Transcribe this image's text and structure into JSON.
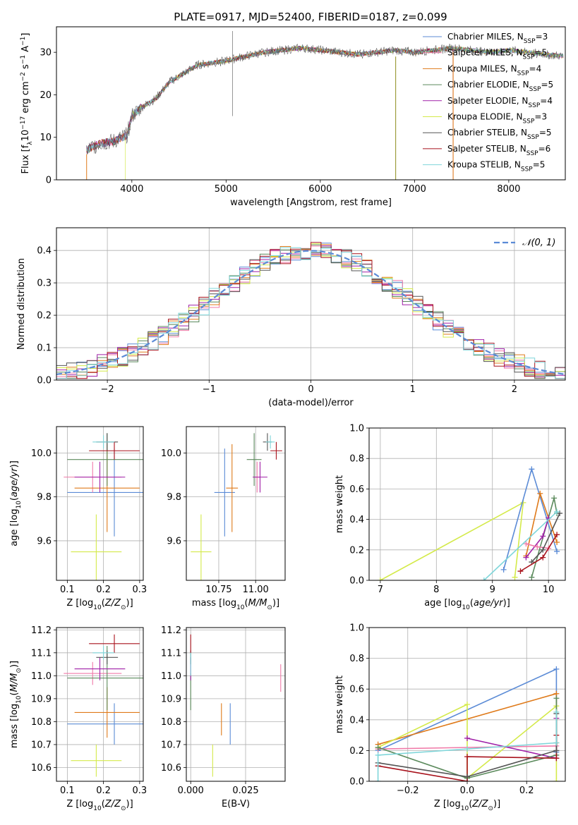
{
  "title": "PLATE=0917, MJD=52400, FIBERID=0187, z=0.099",
  "colors": {
    "Chabrier MILES": "#5b8bd6",
    "Salpeter MILES": "#f07aa8",
    "Kroupa MILES": "#df7a1a",
    "Chabrier ELODIE": "#5b8a5c",
    "Salpeter ELODIE": "#a020a8",
    "Kroupa ELODIE": "#d4ea4a",
    "Chabrier STELIB": "#555555",
    "Salpeter STELIB": "#a8121c",
    "Kroupa STELIB": "#7fd6da"
  },
  "chart_data": [
    {
      "id": "spectrum",
      "type": "line",
      "xlabel": "wavelength [Angstrom, rest frame]",
      "ylabel": "Flux [f_λ 10^-17 erg cm^-2 s^-1 A^-1]",
      "xlim": [
        3200,
        8600
      ],
      "ylim": [
        0,
        36
      ],
      "xticks": [
        "4000",
        "5000",
        "6000",
        "7000",
        "8000"
      ],
      "yticks": [
        "0",
        "10",
        "20",
        "30"
      ],
      "legend_position": "top-right",
      "legend": [
        {
          "model": "Chabrier MILES",
          "nssp": "3"
        },
        {
          "model": "Salpeter MILES",
          "nssp": "5"
        },
        {
          "model": "Kroupa MILES",
          "nssp": "4"
        },
        {
          "model": "Chabrier ELODIE",
          "nssp": "5"
        },
        {
          "model": "Salpeter ELODIE",
          "nssp": "4"
        },
        {
          "model": "Kroupa ELODIE",
          "nssp": "3"
        },
        {
          "model": "Chabrier STELIB",
          "nssp": "5"
        },
        {
          "model": "Salpeter STELIB",
          "nssp": "6"
        },
        {
          "model": "Kroupa STELIB",
          "nssp": "5"
        }
      ],
      "continuum": [
        [
          3520,
          7
        ],
        [
          3650,
          8.5
        ],
        [
          3800,
          9
        ],
        [
          3950,
          10.5
        ],
        [
          4000,
          15
        ],
        [
          4100,
          17
        ],
        [
          4250,
          19
        ],
        [
          4400,
          23
        ],
        [
          4550,
          25
        ],
        [
          4700,
          27
        ],
        [
          4850,
          27.5
        ],
        [
          5000,
          28
        ],
        [
          5200,
          29
        ],
        [
          5400,
          30
        ],
        [
          5600,
          30.5
        ],
        [
          5800,
          31
        ],
        [
          6000,
          30.5
        ],
        [
          6200,
          30
        ],
        [
          6400,
          29.5
        ],
        [
          6600,
          30
        ],
        [
          6800,
          30.5
        ],
        [
          7000,
          30
        ],
        [
          7200,
          30.5
        ],
        [
          7400,
          31
        ],
        [
          7600,
          30.5
        ],
        [
          7800,
          30
        ],
        [
          8000,
          30.5
        ],
        [
          8200,
          30
        ],
        [
          8400,
          29.5
        ],
        [
          8600,
          29
        ]
      ],
      "drops": [
        [
          3520,
          0
        ],
        [
          3930,
          0
        ],
        [
          6800,
          0
        ],
        [
          7410,
          0
        ],
        [
          8600,
          0
        ]
      ]
    },
    {
      "id": "residuals",
      "type": "line",
      "xlabel": "(data-model)/error",
      "ylabel": "Normed distribution",
      "xlim": [
        -2.5,
        2.5
      ],
      "ylim": [
        0,
        0.47
      ],
      "xticks": [
        "−2",
        "−1",
        "0",
        "1",
        "2"
      ],
      "yticks": [
        "0.0",
        "0.1",
        "0.2",
        "0.3",
        "0.4"
      ],
      "legend_position": "top-right",
      "legend_label": "𝒩(0, 1)",
      "normal_curve": {
        "mu": 0,
        "sigma": 1
      }
    },
    {
      "id": "age-vs-Z",
      "type": "scatter",
      "xlabel": "Z [log10(Z/Z⊙)]",
      "ylabel": "age [log10(age/yr)]",
      "xlim": [
        0.07,
        0.31
      ],
      "ylim": [
        9.42,
        10.12
      ],
      "xticks": [
        "0.1",
        "0.2",
        "0.3"
      ],
      "yticks": [
        "9.6",
        "9.8",
        "10.0"
      ],
      "points": [
        {
          "model": "Chabrier MILES",
          "x": 0.23,
          "xerr": 0.13,
          "y": 9.82,
          "yerr": 0.2
        },
        {
          "model": "Salpeter MILES",
          "x": 0.17,
          "xerr": 0.08,
          "y": 9.89,
          "yerr": 0.07
        },
        {
          "model": "Kroupa MILES",
          "x": 0.21,
          "xerr": 0.09,
          "y": 9.84,
          "yerr": 0.2
        },
        {
          "model": "Chabrier ELODIE",
          "x": 0.21,
          "xerr": 0.11,
          "y": 9.97,
          "yerr": 0.12
        },
        {
          "model": "Salpeter ELODIE",
          "x": 0.19,
          "xerr": 0.07,
          "y": 9.89,
          "yerr": 0.07
        },
        {
          "model": "Kroupa ELODIE",
          "x": 0.18,
          "xerr": 0.07,
          "y": 9.55,
          "yerr": 0.17
        },
        {
          "model": "Chabrier STELIB",
          "x": 0.21,
          "xerr": 0.03,
          "y": 10.05,
          "yerr": 0.04
        },
        {
          "model": "Salpeter STELIB",
          "x": 0.23,
          "xerr": 0.07,
          "y": 10.01,
          "yerr": 0.04
        },
        {
          "model": "Kroupa STELIB",
          "x": 0.2,
          "xerr": 0.03,
          "y": 10.05,
          "yerr": 0.03
        }
      ]
    },
    {
      "id": "age-vs-mass",
      "type": "scatter",
      "xlabel": "mass [log10(M/M⊙)]",
      "ylabel": "",
      "xlim": [
        10.53,
        11.2
      ],
      "ylim": [
        9.42,
        10.12
      ],
      "xticks": [
        "10.75",
        "11.00"
      ],
      "yticks": [
        "9.6",
        "9.8",
        "10.0"
      ],
      "points": [
        {
          "model": "Chabrier MILES",
          "x": 10.79,
          "xerr": 0.07,
          "y": 9.82,
          "yerr": 0.2
        },
        {
          "model": "Salpeter MILES",
          "x": 11.01,
          "xerr": 0.02,
          "y": 9.89,
          "yerr": 0.07
        },
        {
          "model": "Kroupa MILES",
          "x": 10.84,
          "xerr": 0.04,
          "y": 9.84,
          "yerr": 0.2
        },
        {
          "model": "Chabrier ELODIE",
          "x": 10.99,
          "xerr": 0.05,
          "y": 9.97,
          "yerr": 0.12
        },
        {
          "model": "Salpeter ELODIE",
          "x": 11.03,
          "xerr": 0.05,
          "y": 9.89,
          "yerr": 0.07
        },
        {
          "model": "Kroupa ELODIE",
          "x": 10.63,
          "xerr": 0.07,
          "y": 9.55,
          "yerr": 0.17
        },
        {
          "model": "Chabrier STELIB",
          "x": 11.08,
          "xerr": 0.03,
          "y": 10.05,
          "yerr": 0.04
        },
        {
          "model": "Salpeter STELIB",
          "x": 11.14,
          "xerr": 0.04,
          "y": 10.01,
          "yerr": 0.04
        },
        {
          "model": "Kroupa STELIB",
          "x": 11.1,
          "xerr": 0.03,
          "y": 10.05,
          "yerr": 0.03
        }
      ]
    },
    {
      "id": "weight-vs-age",
      "type": "line",
      "xlabel": "age [log10(age/yr)]",
      "ylabel": "mass weight",
      "xlim": [
        6.8,
        10.3
      ],
      "ylim": [
        0,
        1
      ],
      "xticks": [
        "7",
        "8",
        "9",
        "10"
      ],
      "yticks": [
        "0.0",
        "0.2",
        "0.4",
        "0.6",
        "0.8",
        "1.0"
      ],
      "series": [
        {
          "model": "Kroupa ELODIE",
          "x": [
            7.0,
            9.55,
            9.4
          ],
          "y": [
            0.0,
            0.51,
            0.02
          ]
        },
        {
          "model": "Chabrier MILES",
          "x": [
            9.2,
            9.7,
            10.15
          ],
          "y": [
            0.07,
            0.73,
            0.19
          ]
        },
        {
          "model": "Kroupa MILES",
          "x": [
            9.6,
            9.85,
            10.15
          ],
          "y": [
            0.16,
            0.57,
            0.25
          ]
        },
        {
          "model": "Chabrier ELODIE",
          "x": [
            9.7,
            10.1,
            10.15
          ],
          "y": [
            0.02,
            0.54,
            0.44
          ]
        },
        {
          "model": "Salpeter ELODIE",
          "x": [
            9.6,
            9.9,
            10.0
          ],
          "y": [
            0.15,
            0.29,
            0.41
          ]
        },
        {
          "model": "Salpeter MILES",
          "x": [
            9.6,
            9.8,
            10.0
          ],
          "y": [
            0.24,
            0.22,
            0.21
          ]
        },
        {
          "model": "Chabrier STELIB",
          "x": [
            9.7,
            9.9,
            10.2
          ],
          "y": [
            0.12,
            0.2,
            0.44
          ]
        },
        {
          "model": "Salpeter STELIB",
          "x": [
            9.5,
            9.9,
            10.15
          ],
          "y": [
            0.06,
            0.15,
            0.3
          ]
        },
        {
          "model": "Kroupa STELIB",
          "x": [
            8.85,
            10.15
          ],
          "y": [
            0.0,
            0.45
          ]
        }
      ]
    },
    {
      "id": "mass-vs-Z",
      "type": "scatter",
      "xlabel": "Z [log10(Z/Z⊙)]",
      "ylabel": "mass [log10(M/M⊙)]",
      "xlim": [
        0.07,
        0.31
      ],
      "ylim": [
        10.54,
        11.21
      ],
      "xticks": [
        "0.1",
        "0.2",
        "0.3"
      ],
      "yticks": [
        "10.6",
        "10.7",
        "10.8",
        "10.9",
        "11.0",
        "11.1",
        "11.2"
      ],
      "points": [
        {
          "model": "Chabrier MILES",
          "x": 0.23,
          "xerr": 0.13,
          "y": 10.79,
          "yerr": 0.09
        },
        {
          "model": "Salpeter MILES",
          "x": 0.17,
          "xerr": 0.08,
          "y": 11.01,
          "yerr": 0.05
        },
        {
          "model": "Kroupa MILES",
          "x": 0.21,
          "xerr": 0.09,
          "y": 10.84,
          "yerr": 0.11
        },
        {
          "model": "Chabrier ELODIE",
          "x": 0.21,
          "xerr": 0.11,
          "y": 10.99,
          "yerr": 0.14
        },
        {
          "model": "Salpeter ELODIE",
          "x": 0.19,
          "xerr": 0.07,
          "y": 11.03,
          "yerr": 0.05
        },
        {
          "model": "Kroupa ELODIE",
          "x": 0.18,
          "xerr": 0.07,
          "y": 10.63,
          "yerr": 0.07
        },
        {
          "model": "Chabrier STELIB",
          "x": 0.21,
          "xerr": 0.03,
          "y": 11.08,
          "yerr": 0.03
        },
        {
          "model": "Salpeter STELIB",
          "x": 0.23,
          "xerr": 0.07,
          "y": 11.14,
          "yerr": 0.04
        },
        {
          "model": "Kroupa STELIB",
          "x": 0.2,
          "xerr": 0.03,
          "y": 11.1,
          "yerr": 0.03
        }
      ]
    },
    {
      "id": "mass-vs-EBV",
      "type": "scatter",
      "xlabel": "E(B-V)",
      "ylabel": "",
      "xlim": [
        -0.002,
        0.043
      ],
      "ylim": [
        10.54,
        11.21
      ],
      "xticks": [
        "0.000",
        "0.025"
      ],
      "yticks": [
        "10.6",
        "10.7",
        "10.8",
        "10.9",
        "11.0",
        "11.1",
        "11.2"
      ],
      "points": [
        {
          "model": "Chabrier MILES",
          "x": 0.018,
          "y": 10.79,
          "yerr": 0.09
        },
        {
          "model": "Salpeter MILES",
          "x": 0.041,
          "y": 10.99,
          "yerr": 0.06
        },
        {
          "model": "Kroupa MILES",
          "x": 0.014,
          "y": 10.81,
          "yerr": 0.07
        },
        {
          "model": "Chabrier ELODIE",
          "x": 0.0,
          "y": 10.93,
          "yerr": 0.08
        },
        {
          "model": "Salpeter ELODIE",
          "x": 0.0,
          "y": 11.03,
          "yerr": 0.05
        },
        {
          "model": "Kroupa ELODIE",
          "x": 0.01,
          "y": 10.63,
          "yerr": 0.07
        },
        {
          "model": "Chabrier STELIB",
          "x": 0.0,
          "y": 11.08,
          "yerr": 0.03
        },
        {
          "model": "Salpeter STELIB",
          "x": 0.0,
          "y": 11.14,
          "yerr": 0.04
        },
        {
          "model": "Kroupa STELIB",
          "x": 0.0,
          "y": 11.05,
          "yerr": 0.05
        }
      ]
    },
    {
      "id": "weight-vs-Z",
      "type": "line",
      "xlabel": "Z [log10(Z/Z⊙)]",
      "ylabel": "mass weight",
      "xlim": [
        -0.33,
        0.33
      ],
      "ylim": [
        0,
        1
      ],
      "xticks": [
        "−0.2",
        "0.0",
        "0.2"
      ],
      "yticks": [
        "0.0",
        "0.2",
        "0.4",
        "0.6",
        "0.8",
        "1.0"
      ],
      "series": [
        {
          "model": "Chabrier MILES",
          "x": [
            -0.3,
            0.3,
            0.3
          ],
          "y": [
            0.2,
            0.73,
            0.19
          ]
        },
        {
          "model": "Kroupa MILES",
          "x": [
            -0.3,
            0.3,
            0.3
          ],
          "y": [
            0.24,
            0.57,
            0.25
          ]
        },
        {
          "model": "Kroupa ELODIE",
          "x": [
            -0.3,
            0.0,
            0.0,
            0.3,
            0.3
          ],
          "y": [
            0.22,
            0.5,
            0.02,
            0.49,
            0.0
          ]
        },
        {
          "model": "Salpeter MILES",
          "x": [
            -0.3,
            0.3
          ],
          "y": [
            0.21,
            0.23
          ]
        },
        {
          "model": "Salpeter ELODIE",
          "x": [
            0.0,
            0.3,
            0.3
          ],
          "y": [
            0.28,
            0.15,
            0.41
          ]
        },
        {
          "model": "Chabrier ELODIE",
          "x": [
            -0.3,
            0.0,
            0.3,
            0.3
          ],
          "y": [
            0.22,
            0.02,
            0.17,
            0.54
          ]
        },
        {
          "model": "Salpeter STELIB",
          "x": [
            -0.3,
            0.0,
            0.0,
            0.3,
            0.3
          ],
          "y": [
            0.1,
            0.0,
            0.16,
            0.15,
            0.3
          ]
        },
        {
          "model": "Chabrier STELIB",
          "x": [
            -0.3,
            0.0,
            0.3,
            0.3
          ],
          "y": [
            0.12,
            0.03,
            0.2,
            0.44
          ]
        },
        {
          "model": "Kroupa STELIB",
          "x": [
            -0.3,
            -0.3,
            0.0,
            0.3,
            0.3
          ],
          "y": [
            0.0,
            0.17,
            0.21,
            0.25,
            0.45
          ]
        }
      ]
    }
  ]
}
